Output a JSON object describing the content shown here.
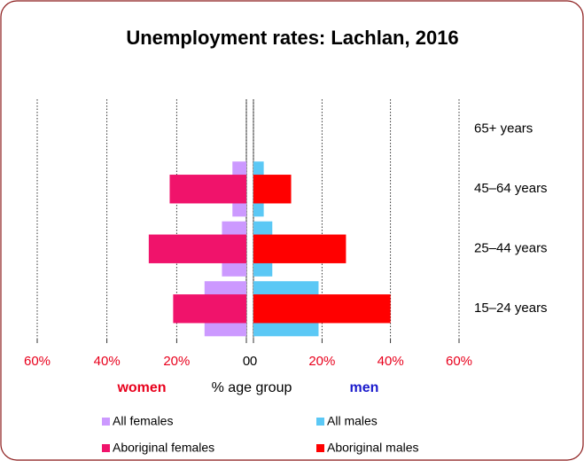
{
  "title": "Unemployment rates: Lachlan, 2016",
  "xlabel": "% age group",
  "chart_data": [
    {
      "type": "bar",
      "direction": "left",
      "axis_label": "women",
      "axis_label_color": "#e8001c",
      "xlim": [
        0,
        60
      ],
      "xticks": [
        {
          "value": 60,
          "label": "60%"
        },
        {
          "value": 40,
          "label": "40%"
        },
        {
          "value": 20,
          "label": "20%"
        },
        0
      ],
      "grid": true,
      "series": [
        {
          "name": "All females",
          "color": "#cc99ff",
          "values": [
            12,
            7,
            4,
            0
          ]
        },
        {
          "name": "Aboriginal females",
          "color": "#f0136b",
          "values": [
            21,
            28,
            22,
            0
          ]
        }
      ]
    },
    {
      "type": "bar",
      "direction": "right",
      "axis_label": "men",
      "axis_label_color": "#1a1acc",
      "categories": [
        "15–24 years",
        "25–44 years",
        "45–64 years",
        "65+ years"
      ],
      "xlim": [
        0,
        60
      ],
      "xticks": [
        0,
        {
          "value": 20,
          "label": "20%"
        },
        {
          "value": 40,
          "label": "40%"
        },
        {
          "value": 60,
          "label": "60%"
        }
      ],
      "grid": true,
      "series": [
        {
          "name": "All males",
          "color": "#5bc8f5",
          "values": [
            19,
            5.5,
            3,
            0
          ]
        },
        {
          "name": "Aboriginal males",
          "color": "#ff0000",
          "values": [
            40,
            27,
            11,
            0
          ]
        }
      ]
    }
  ]
}
